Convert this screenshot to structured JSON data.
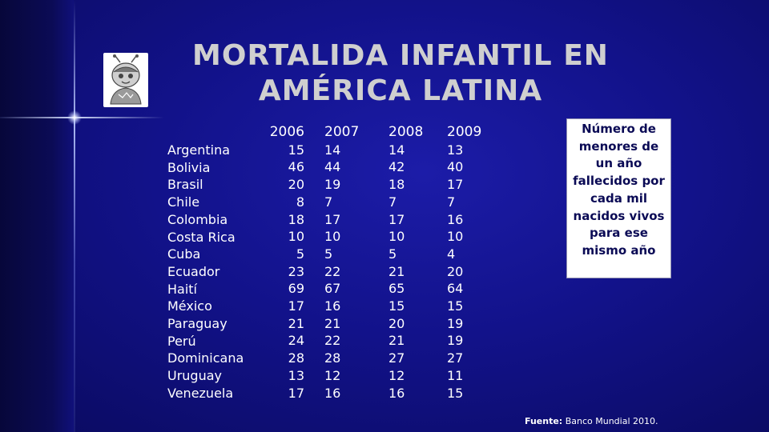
{
  "title": {
    "line1": "MORTALIDA INFANTIL EN",
    "line2": "AMÉRICA LATINA"
  },
  "table": {
    "years": [
      "2006",
      "2007",
      "2008",
      "2009"
    ],
    "rows": [
      {
        "country": "Argentina",
        "values": [
          "15",
          "14",
          "14",
          "13"
        ]
      },
      {
        "country": "Bolivia",
        "values": [
          "46",
          "44",
          "42",
          "40"
        ]
      },
      {
        "country": "Brasil",
        "values": [
          "20",
          "19",
          "18",
          "17"
        ]
      },
      {
        "country": "Chile",
        "values": [
          "8",
          "7",
          "7",
          "7"
        ]
      },
      {
        "country": "Colombia",
        "values": [
          "18",
          "17",
          "17",
          "16"
        ]
      },
      {
        "country": "Costa Rica",
        "values": [
          "10",
          "10",
          "10",
          "10"
        ]
      },
      {
        "country": "Cuba",
        "values": [
          "5",
          "5",
          "5",
          "4"
        ]
      },
      {
        "country": "Ecuador",
        "values": [
          "23",
          "22",
          "21",
          "20"
        ]
      },
      {
        "country": "Haití",
        "values": [
          "69",
          "67",
          "65",
          "64"
        ]
      },
      {
        "country": "México",
        "values": [
          "17",
          "16",
          "15",
          "15"
        ]
      },
      {
        "country": "Paraguay",
        "values": [
          "21",
          "21",
          "20",
          "19"
        ]
      },
      {
        "country": "Perú",
        "values": [
          "24",
          "22",
          "21",
          "19"
        ]
      },
      {
        "country": "Dominicana",
        "values": [
          "28",
          "28",
          "27",
          "27"
        ]
      },
      {
        "country": "Uruguay",
        "values": [
          "13",
          "12",
          "12",
          "11"
        ]
      },
      {
        "country": "Venezuela",
        "values": [
          "17",
          "16",
          "16",
          "15"
        ]
      }
    ]
  },
  "note": "Número de menores de un año fallecidos por cada mil nacidos vivos para ese mismo año",
  "source": {
    "label": "Fuente:",
    "text": "Banco Mundial 2010."
  },
  "colors": {
    "background": "#12128a",
    "title": "#cfcfcf",
    "note_bg": "#ffffff",
    "note_text": "#0a0a55"
  }
}
